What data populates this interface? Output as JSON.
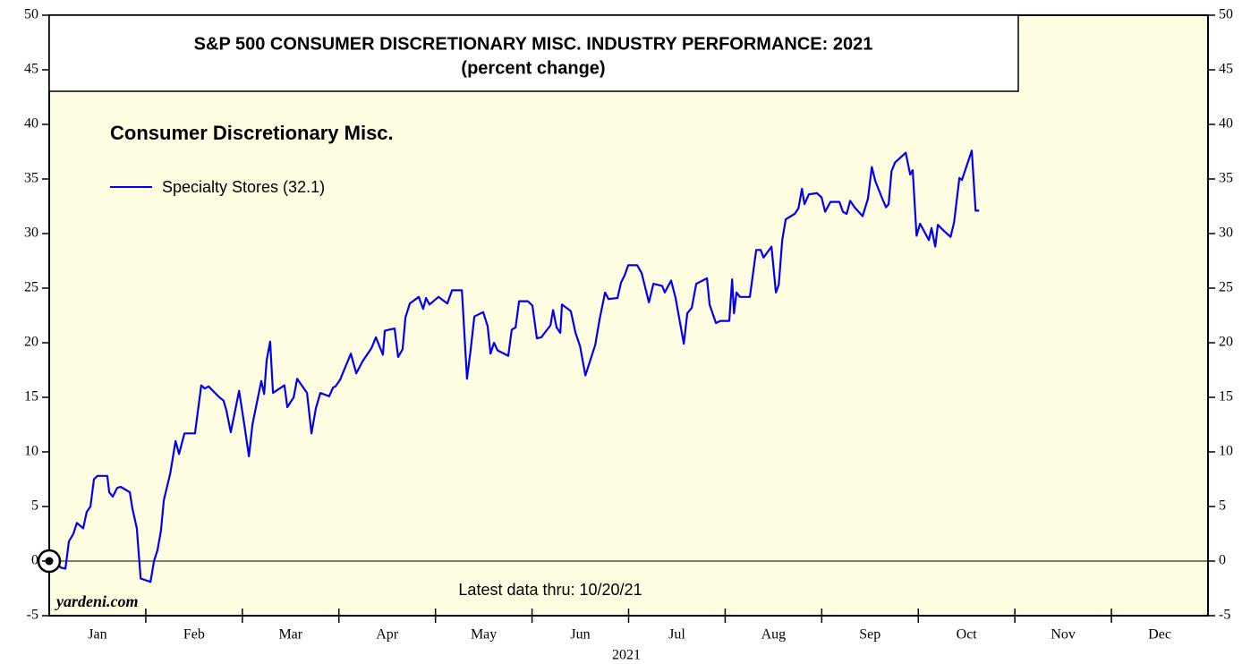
{
  "chart_data": {
    "type": "line",
    "title": "S&P 500 CONSUMER DISCRETIONARY MISC. INDUSTRY PERFORMANCE: 2021",
    "subtitle": "(percent change)",
    "legend_title": "Consumer Discretionary Misc.",
    "xlabel": "2021",
    "annotations": [
      "Latest data thru: 10/20/21",
      "yardeni.com"
    ],
    "categories": [
      "Jan",
      "Feb",
      "Mar",
      "Apr",
      "May",
      "Jun",
      "Jul",
      "Aug",
      "Sep",
      "Oct",
      "Nov",
      "Dec"
    ],
    "xlim": [
      0,
      365
    ],
    "ylim": [
      -5,
      50
    ],
    "yticks": [
      -5,
      0,
      5,
      10,
      15,
      20,
      25,
      30,
      35,
      40,
      45,
      50
    ],
    "y2lim": [
      -5,
      50
    ],
    "y2ticks": [
      -5,
      0,
      5,
      10,
      15,
      20,
      25,
      30,
      35,
      40,
      45,
      50
    ],
    "legend": "upper left",
    "x": [
      0,
      2.3,
      3.7,
      5.1,
      6.2,
      7.6,
      8.7,
      10.7,
      11.8,
      13.0,
      14.1,
      15.2,
      18.3,
      18.9,
      20.0,
      21.4,
      22.5,
      25.4,
      26.2,
      27.6,
      28.8,
      31.9,
      33.0,
      34.1,
      35.2,
      36.1,
      38.1,
      39.8,
      40.9,
      42.6,
      45.9,
      47.9,
      49.0,
      50.2,
      53.6,
      54.9,
      55.8,
      57.2,
      59.8,
      61.5,
      62.9,
      64.0,
      66.8,
      67.7,
      68.5,
      69.6,
      70.5,
      74.1,
      75.0,
      77.0,
      78.1,
      81.2,
      82.6,
      84.0,
      85.4,
      88.2,
      89.4,
      90.2,
      91.6,
      95.0,
      96.7,
      98.7,
      101.5,
      102.9,
      105.1,
      105.7,
      108.8,
      109.9,
      111.3,
      112.2,
      113.6,
      116.4,
      117.8,
      118.7,
      119.8,
      122.6,
      125.4,
      126.9,
      130.0,
      131.6,
      132.8,
      133.9,
      136.7,
      138.1,
      139.0,
      140.1,
      141.2,
      144.6,
      145.7,
      146.9,
      148.0,
      150.8,
      152.2,
      153.6,
      155.0,
      157.9,
      158.7,
      159.8,
      161.0,
      161.5,
      164.3,
      165.8,
      167.2,
      168.9,
      172.0,
      173.4,
      175.1,
      176.2,
      179.0,
      180.1,
      181.3,
      182.4,
      185.2,
      186.6,
      188.9,
      190.3,
      193.1,
      193.9,
      195.9,
      197.3,
      199.9,
      201.0,
      202.4,
      203.8,
      207.2,
      208.0,
      210.0,
      211.4,
      214.2,
      215.1,
      215.7,
      216.5,
      217.6,
      220.7,
      222.7,
      224.1,
      225.0,
      227.5,
      228.9,
      229.8,
      230.9,
      232.0,
      234.8,
      236.0,
      237.1,
      237.9,
      239.3,
      241.9,
      243.3,
      244.4,
      246.1,
      248.9,
      250.0,
      251.2,
      252.3,
      253.7,
      256.2,
      257.9,
      259.1,
      260.2,
      262.4,
      263.6,
      264.4,
      265.3,
      266.4,
      269.8,
      271.2,
      272.0,
      273.2,
      274.3,
      277.1,
      277.9,
      279.1,
      279.9,
      281.6,
      283.9,
      285.0,
      286.7,
      287.5,
      290.6,
      291.8,
      292.9
    ],
    "series": [
      {
        "name": "Specialty Stores (32.1)",
        "color": "#0000ee",
        "values": [
          0,
          -0.2,
          -0.6,
          -0.7,
          1.8,
          2.5,
          3.5,
          3.0,
          4.5,
          5.0,
          7.5,
          7.8,
          7.8,
          6.3,
          5.9,
          6.7,
          6.8,
          6.3,
          4.8,
          3.0,
          -1.6,
          -1.9,
          0.0,
          1.0,
          2.8,
          5.6,
          8.0,
          11.0,
          9.8,
          11.7,
          11.7,
          16.1,
          15.8,
          16.0,
          15.0,
          14.7,
          13.8,
          11.8,
          15.6,
          12.4,
          9.6,
          12.5,
          16.5,
          15.3,
          18.4,
          20.1,
          15.4,
          16.1,
          14.1,
          15.0,
          16.7,
          15.4,
          11.7,
          14.0,
          15.4,
          15.1,
          15.9,
          16.0,
          16.6,
          19.0,
          17.2,
          18.3,
          19.5,
          20.5,
          18.9,
          21.1,
          21.3,
          18.7,
          19.4,
          22.3,
          23.6,
          24.2,
          23.1,
          24.1,
          23.5,
          24.2,
          23.6,
          24.8,
          24.8,
          16.7,
          19.5,
          22.4,
          22.8,
          21.5,
          19.0,
          20.0,
          19.3,
          18.8,
          21.2,
          21.4,
          23.8,
          23.8,
          23.4,
          20.4,
          20.5,
          21.6,
          23.0,
          21.4,
          20.9,
          23.5,
          22.9,
          20.9,
          19.7,
          17.0,
          19.8,
          22.2,
          24.6,
          24.0,
          24.1,
          25.5,
          26.2,
          27.1,
          27.1,
          26.4,
          23.7,
          25.4,
          25.2,
          24.6,
          25.7,
          24.1,
          19.9,
          22.7,
          23.2,
          25.4,
          25.9,
          23.5,
          21.8,
          22.0,
          22.0,
          25.8,
          22.7,
          24.6,
          24.2,
          24.2,
          28.5,
          28.5,
          27.8,
          28.8,
          24.6,
          25.3,
          29.4,
          31.3,
          31.8,
          32.3,
          34.1,
          32.7,
          33.6,
          33.7,
          33.3,
          32.0,
          32.9,
          32.9,
          32.0,
          31.8,
          33.0,
          32.4,
          31.6,
          33.2,
          36.1,
          34.8,
          33.2,
          32.4,
          32.7,
          35.7,
          36.5,
          37.4,
          35.4,
          35.8,
          29.8,
          30.9,
          29.4,
          30.5,
          28.8,
          30.8,
          30.3,
          29.7,
          31.0,
          35.1,
          34.9,
          37.6,
          32.1,
          32.1
        ]
      }
    ]
  }
}
